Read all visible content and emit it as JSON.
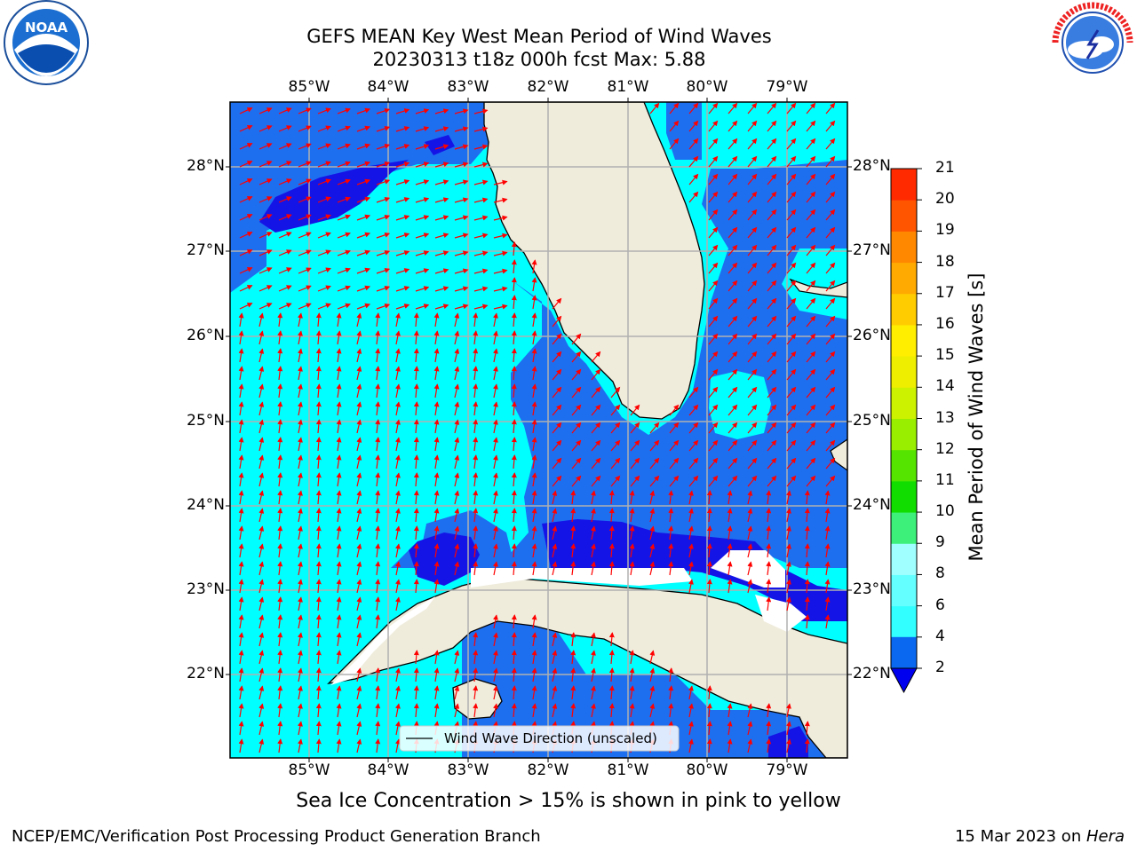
{
  "title": {
    "line1": "GEFS MEAN Key West Mean Period of Wind Waves",
    "line2": "20230313 t18z 000h fcst   Max: 5.88"
  },
  "logos": {
    "left": "noaa-logo",
    "left_text": "NOAA",
    "right": "national-weather-service-logo"
  },
  "axes": {
    "lon_ticks": [
      "85°W",
      "84°W",
      "83°W",
      "82°W",
      "81°W",
      "80°W",
      "79°W"
    ],
    "lat_ticks": [
      "28°N",
      "27°N",
      "26°N",
      "25°N",
      "24°N",
      "23°N",
      "22°N"
    ]
  },
  "legend": {
    "label": "Wind Wave Direction (unscaled)"
  },
  "colorbar": {
    "label": "Mean Period of Wind Waves [s]",
    "ticks": [
      "2",
      "4",
      "6",
      "8",
      "9",
      "10",
      "11",
      "12",
      "13",
      "14",
      "15",
      "16",
      "17",
      "18",
      "19",
      "20",
      "21"
    ],
    "colors": [
      "#0a68f0",
      "#00e5ff",
      "#32ffff",
      "#64ffff",
      "#a0ffff",
      "#3cf07a",
      "#11dd00",
      "#55e400",
      "#99ee00",
      "#ccf200",
      "#eeee00",
      "#ffee00",
      "#ffcc00",
      "#ffaa00",
      "#ff8800",
      "#ff5500",
      "#ff2a00",
      "#ff0000"
    ],
    "extend_color": "#0000ee"
  },
  "map": {
    "ocean_colors": {
      "period_2_4": "#1e6ef0",
      "period_lt_2": "#1414e6",
      "period_4_6": "#00ffff",
      "land": "#efecdc"
    },
    "arrow_color": "#ff0000"
  },
  "caption": "Sea Ice Concentration > 15% is shown in pink to yellow",
  "footer": {
    "left": "NCEP/EMC/Verification Post Processing Product Generation Branch",
    "right_date": "15 Mar 2023 on ",
    "right_host": "Hera"
  }
}
